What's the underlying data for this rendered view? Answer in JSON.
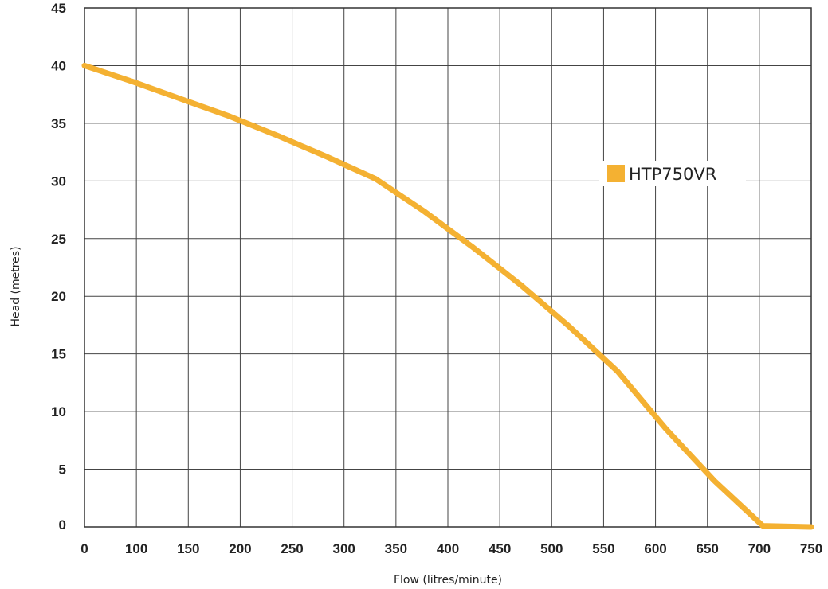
{
  "chart_data": {
    "type": "line",
    "title": "",
    "xlabel": "Flow (litres/minute)",
    "ylabel": "Head (metres)",
    "xlim": [
      0,
      750
    ],
    "ylim": [
      0,
      45
    ],
    "x_ticks": [
      "0",
      "100",
      "150",
      "200",
      "250",
      "300",
      "350",
      "400",
      "450",
      "500",
      "550",
      "600",
      "650",
      "700",
      "750"
    ],
    "y_ticks": [
      "0",
      "5",
      "10",
      "15",
      "20",
      "25",
      "30",
      "35",
      "40",
      "45"
    ],
    "grid": true,
    "legend": "right",
    "series": [
      {
        "name": "HTP750VR",
        "color": "#f4b132",
        "x": [
          0,
          50,
          100,
          150,
          200,
          250,
          300,
          350,
          400,
          450,
          500,
          550,
          600,
          650,
          700,
          750
        ],
        "y": [
          40,
          38.6,
          37.1,
          35.6,
          33.9,
          32.1,
          30.2,
          27.4,
          24.3,
          21.0,
          17.4,
          13.5,
          8.5,
          4.0,
          0.1,
          0
        ]
      }
    ]
  }
}
